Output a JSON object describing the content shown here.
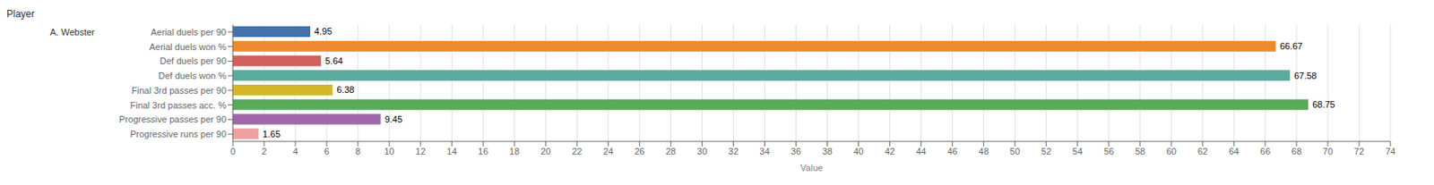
{
  "chart_data": {
    "type": "bar",
    "orientation": "horizontal",
    "title": "Player",
    "xlabel": "Value",
    "categories": [
      "Aerial duels per 90",
      "Aerial duels won %",
      "Def duels per 90",
      "Def duels won %",
      "Final 3rd passes per 90",
      "Final 3rd passes acc. %",
      "Progressive passes per 90",
      "Progressive runs per 90"
    ],
    "values": [
      4.95,
      66.67,
      5.64,
      67.58,
      6.38,
      68.75,
      9.45,
      1.65
    ],
    "colors": [
      "#4472a8",
      "#ed8a2f",
      "#d45f5f",
      "#5aaa9e",
      "#d4b82a",
      "#5aaa5a",
      "#a06aaa",
      "#f0a0a0"
    ],
    "xlim": [
      0,
      74
    ],
    "xticks": [
      0,
      2,
      4,
      6,
      8,
      10,
      12,
      14,
      16,
      18,
      20,
      22,
      24,
      26,
      28,
      30,
      32,
      34,
      36,
      38,
      40,
      42,
      44,
      46,
      48,
      50,
      52,
      54,
      56,
      58,
      60,
      62,
      64,
      66,
      68,
      70,
      72,
      74
    ],
    "grid": true,
    "data_labels": true,
    "annotations": [
      {
        "text": "A. Webster",
        "category": "Aerial duels per 90"
      }
    ]
  }
}
